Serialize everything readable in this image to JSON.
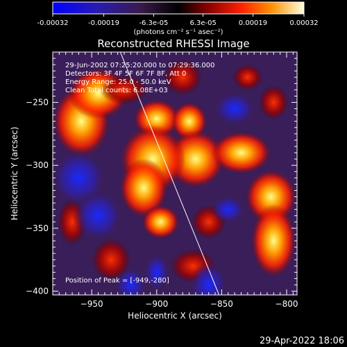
{
  "colorbar": {
    "tick_labels": [
      "-0.00032",
      "-0.00019",
      "-6.3e-05",
      "6.3e-05",
      "0.00019",
      "0.00032"
    ],
    "range": [
      -0.00032,
      0.00032
    ],
    "unit_label": "(photons cm⁻² s⁻¹ asec⁻²)"
  },
  "chart_data": {
    "type": "heatmap",
    "title": "Reconstructed RHESSI Image",
    "xlabel": "Heliocentric X (arcsec)",
    "ylabel": "Heliocentric Y (arcsec)",
    "xlim": [
      -980,
      -792
    ],
    "ylim": [
      -403,
      -210
    ],
    "x_ticks": [
      -950,
      -900,
      -850,
      -800
    ],
    "y_ticks": [
      -250,
      -300,
      -350,
      -400
    ],
    "x_tick_labels": [
      "−950",
      "−900",
      "−850",
      "−800"
    ],
    "y_tick_labels": [
      "−250",
      "−300",
      "−350",
      "−400"
    ],
    "annotations": [
      "29-Jun-2002 07:25:20.000 to 07:29:36.000",
      "Detectors: 3F 4F 5F 6F 7F 8F, Att 0",
      "Energy Range: 25.0 - 50.0 keV",
      "Clean    Total counts: 6.08E+03"
    ],
    "peak_label": "Position of Peak = [-949,-280]",
    "limb_line": {
      "from": [
        -928,
        -210
      ],
      "to": [
        -852,
        -403
      ]
    },
    "blobs": [
      {
        "x": -958,
        "y": -265,
        "v": 0.00028
      },
      {
        "x": -945,
        "y": -243,
        "v": 0.00021
      },
      {
        "x": -900,
        "y": -263,
        "v": 0.00022
      },
      {
        "x": -875,
        "y": -265,
        "v": 0.0002
      },
      {
        "x": -870,
        "y": -295,
        "v": 0.00024
      },
      {
        "x": -903,
        "y": -295,
        "v": 0.00026
      },
      {
        "x": -910,
        "y": -318,
        "v": 0.00029
      },
      {
        "x": -897,
        "y": -345,
        "v": 0.00018
      },
      {
        "x": -835,
        "y": -290,
        "v": 0.00022
      },
      {
        "x": -812,
        "y": -325,
        "v": 0.0002
      },
      {
        "x": -810,
        "y": -360,
        "v": 0.0003
      },
      {
        "x": -860,
        "y": -345,
        "v": 0.00012
      },
      {
        "x": -925,
        "y": -240,
        "v": 0.00014
      },
      {
        "x": -880,
        "y": -230,
        "v": 0.00015
      },
      {
        "x": -965,
        "y": -345,
        "v": 0.00014
      },
      {
        "x": -935,
        "y": -375,
        "v": 0.00012
      },
      {
        "x": -872,
        "y": -380,
        "v": 0.00013
      },
      {
        "x": -830,
        "y": -230,
        "v": 0.00011
      },
      {
        "x": -810,
        "y": -250,
        "v": 0.00012
      },
      {
        "x": -960,
        "y": -310,
        "v": -0.0002
      },
      {
        "x": -945,
        "y": -340,
        "v": -0.00018
      },
      {
        "x": -920,
        "y": -395,
        "v": -0.00016
      },
      {
        "x": -845,
        "y": -335,
        "v": -0.00012
      },
      {
        "x": -840,
        "y": -255,
        "v": -0.0001
      },
      {
        "x": -860,
        "y": -395,
        "v": -0.00012
      },
      {
        "x": -900,
        "y": -385,
        "v": -0.0001
      }
    ]
  },
  "footer_timestamp": "29-Apr-2022 18:06"
}
